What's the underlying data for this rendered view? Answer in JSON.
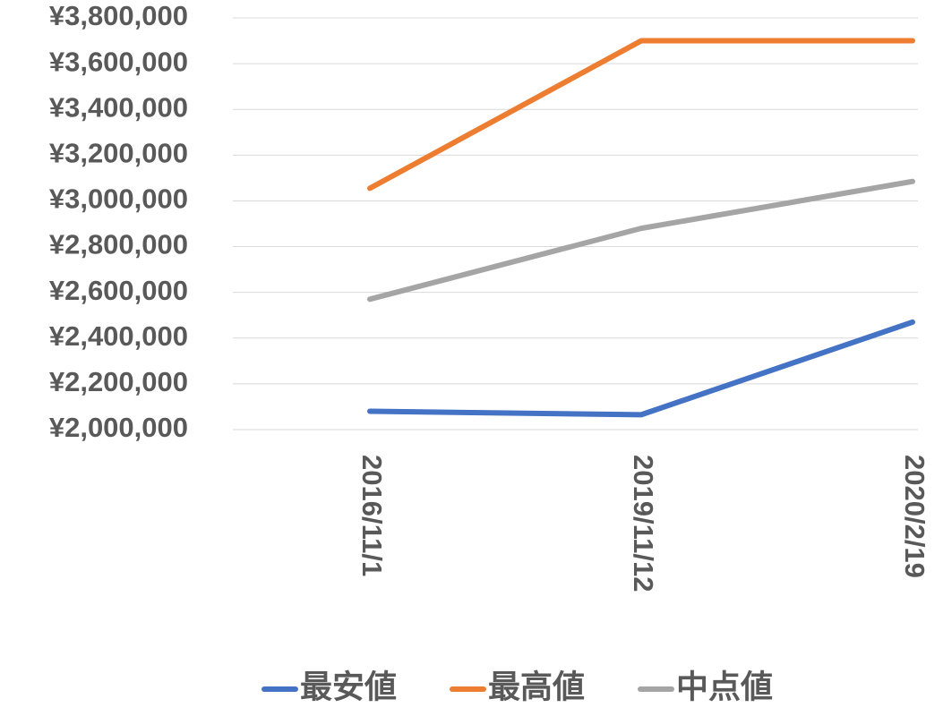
{
  "chart_data": {
    "type": "line",
    "categories": [
      "2016/11/1",
      "2019/11/12",
      "2020/2/19"
    ],
    "series": [
      {
        "name": "最安値",
        "color": "#4472c4",
        "values": [
          2080000,
          2065000,
          2470000
        ]
      },
      {
        "name": "最高値",
        "color": "#ed7d31",
        "values": [
          3055000,
          3700000,
          3700000
        ]
      },
      {
        "name": "中点値",
        "color": "#a5a5a5",
        "values": [
          2570000,
          2880000,
          3085000
        ]
      }
    ],
    "ylim": [
      2000000,
      3800000
    ],
    "yticks": [
      {
        "value": 2000000,
        "label": "¥2,000,000"
      },
      {
        "value": 2200000,
        "label": "¥2,200,000"
      },
      {
        "value": 2400000,
        "label": "¥2,400,000"
      },
      {
        "value": 2600000,
        "label": "¥2,600,000"
      },
      {
        "value": 2800000,
        "label": "¥2,800,000"
      },
      {
        "value": 3000000,
        "label": "¥3,000,000"
      },
      {
        "value": 3200000,
        "label": "¥3,200,000"
      },
      {
        "value": 3400000,
        "label": "¥3,400,000"
      },
      {
        "value": 3600000,
        "label": "¥3,600,000"
      },
      {
        "value": 3800000,
        "label": "¥3,800,000"
      }
    ],
    "grid": true,
    "legend": "bottom"
  }
}
